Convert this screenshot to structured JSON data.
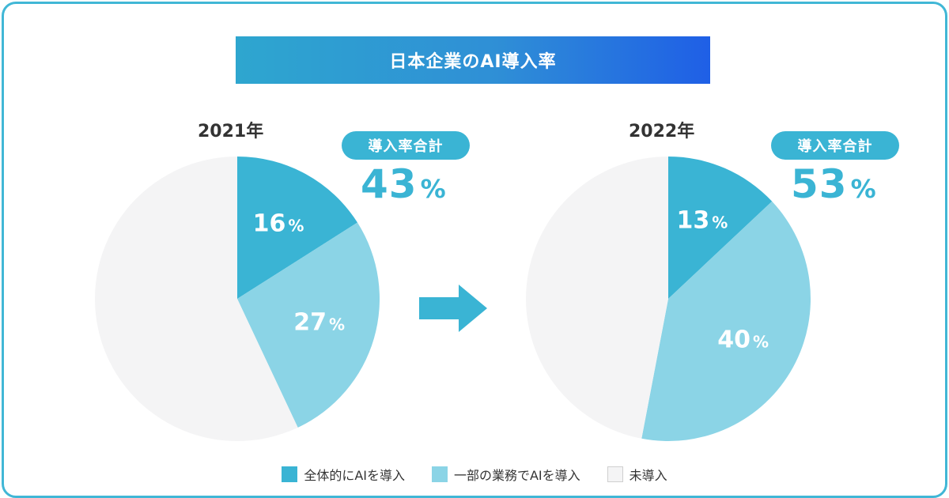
{
  "title": "日本企業のAI導入率",
  "colors": {
    "full": "#3ab4d4",
    "partial": "#8bd4e6",
    "none": "#f4f4f5",
    "accent": "#3ab4d4"
  },
  "total_label": "導入率合計",
  "percent_sign": "%",
  "charts": [
    {
      "year": "2021年",
      "total": "43",
      "slices": [
        16,
        27,
        57
      ],
      "labels": [
        "16",
        "27"
      ]
    },
    {
      "year": "2022年",
      "total": "53",
      "slices": [
        13,
        40,
        47
      ],
      "labels": [
        "13",
        "40"
      ]
    }
  ],
  "legend": [
    "全体的にAIを導入",
    "一部の業務でAIを導入",
    "未導入"
  ],
  "chart_data": [
    {
      "type": "pie",
      "title": "2021年",
      "categories": [
        "全体的にAIを導入",
        "一部の業務でAIを導入",
        "未導入"
      ],
      "values": [
        16,
        27,
        57
      ],
      "annotation": "導入率合計 43%"
    },
    {
      "type": "pie",
      "title": "2022年",
      "categories": [
        "全体的にAIを導入",
        "一部の業務でAIを導入",
        "未導入"
      ],
      "values": [
        13,
        40,
        47
      ],
      "annotation": "導入率合計 53%"
    }
  ]
}
